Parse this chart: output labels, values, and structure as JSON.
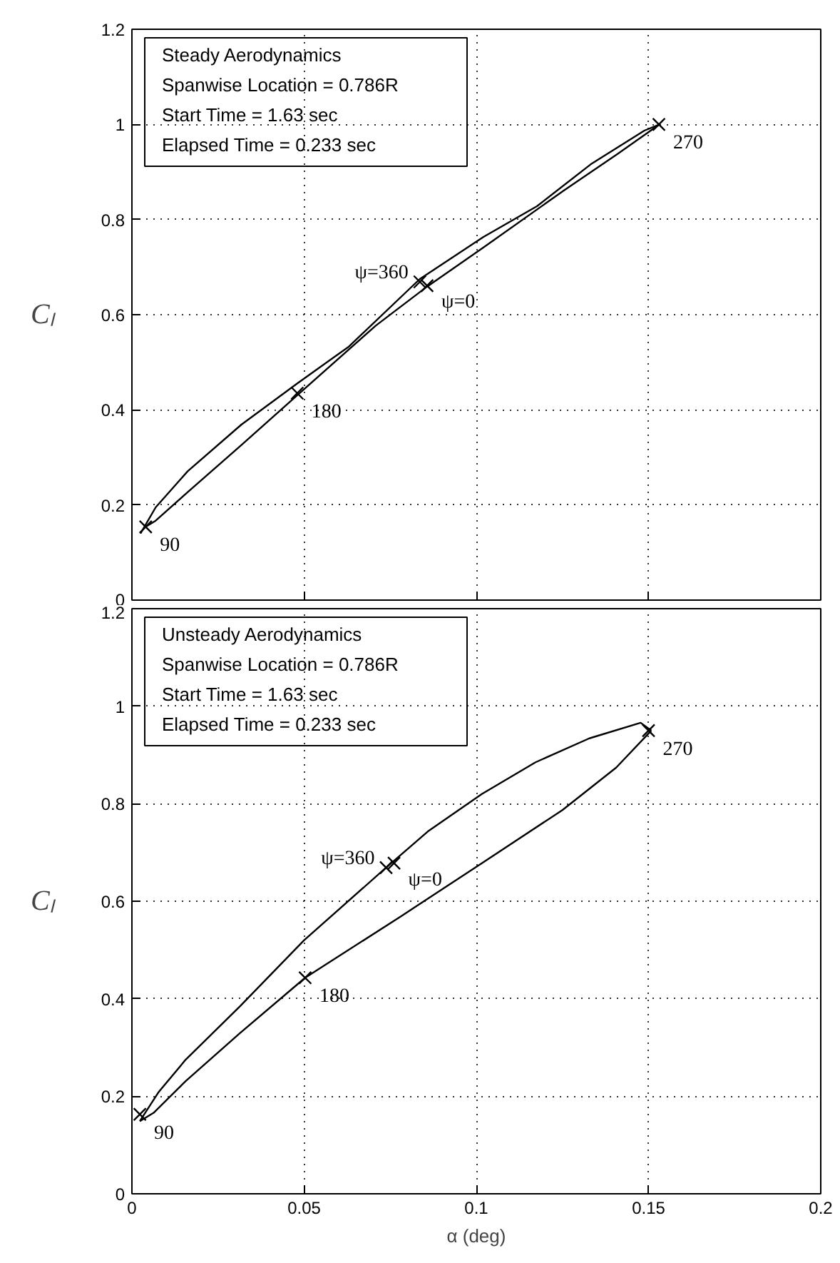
{
  "chart_data": [
    {
      "type": "line",
      "ylabel": "Cₗ",
      "xlim": [
        0,
        0.2
      ],
      "xticks": [
        0,
        0.05,
        0.1,
        0.15,
        0.2
      ],
      "ylim": [
        0,
        1.2
      ],
      "yticks": [
        0,
        0.2,
        0.4,
        0.6,
        0.8,
        1,
        1.2
      ],
      "tick_labels": "y",
      "grid": true,
      "series": [
        {
          "color": "#000000",
          "x": [
            0.0025,
            0.0069,
            0.0162,
            0.0318,
            0.0479,
            0.063,
            0.0836,
            0.102,
            0.1176,
            0.1332,
            0.1488,
            0.1532
          ],
          "values": [
            0.14,
            0.195,
            0.271,
            0.369,
            0.455,
            0.533,
            0.675,
            0.763,
            0.828,
            0.916,
            0.987,
            1.0
          ]
        },
        {
          "color": "#000000",
          "x": [
            0.004,
            0.0069,
            0.0162,
            0.0318,
            0.0479,
            0.0708,
            0.0857,
            0.102,
            0.1254,
            0.141,
            0.1532
          ],
          "values": [
            0.154,
            0.167,
            0.227,
            0.326,
            0.43,
            0.577,
            0.659,
            0.741,
            0.861,
            0.938,
            1.0
          ]
        },
        {
          "type": "scatter",
          "color": "#000000",
          "marker": "cross",
          "x": [
            0.0857,
            0.004,
            0.048,
            0.153,
            0.0836
          ],
          "values": [
            0.661,
            0.154,
            0.435,
            1.0,
            0.669
          ]
        }
      ],
      "annotations": [
        "Steady Aerodynamics",
        "Spanwise Location = 0.786R",
        "Start Time = 1.63 sec",
        "Elapsed Time = 0.233 sec",
        {
          "text": "270",
          "x": 0.153,
          "y": 1.0
        },
        {
          "text": "ψ=360",
          "x": 0.0836,
          "y": 0.669
        },
        {
          "text": "ψ=0",
          "x": 0.0857,
          "y": 0.661
        },
        {
          "text": "180",
          "x": 0.048,
          "y": 0.435
        },
        {
          "text": "90",
          "x": 0.004,
          "y": 0.154
        }
      ]
    },
    {
      "type": "line",
      "xlabel": "α (deg)",
      "ylabel": "Cₗ",
      "xlim": [
        0,
        0.2
      ],
      "xticks": [
        0,
        0.05,
        0.1,
        0.15,
        0.2
      ],
      "ylim": [
        0,
        1.2
      ],
      "yticks": [
        0,
        0.2,
        0.4,
        0.6,
        0.8,
        1,
        1.2
      ],
      "grid": true,
      "series": [
        {
          "color": "#000000",
          "x": [
            0.0023,
            0.0078,
            0.0156,
            0.0313,
            0.05,
            0.0738,
            0.0859,
            0.1016,
            0.1172,
            0.1328,
            0.1477,
            0.1508
          ],
          "values": [
            0.149,
            0.209,
            0.275,
            0.384,
            0.52,
            0.669,
            0.743,
            0.82,
            0.885,
            0.934,
            0.966,
            0.95
          ]
        },
        {
          "color": "#000000",
          "x": [
            0.0023,
            0.0063,
            0.0156,
            0.0313,
            0.0503,
            0.0781,
            0.1016,
            0.125,
            0.1406,
            0.1508
          ],
          "values": [
            0.149,
            0.166,
            0.231,
            0.329,
            0.443,
            0.569,
            0.678,
            0.787,
            0.874,
            0.95
          ]
        },
        {
          "type": "scatter",
          "color": "#000000",
          "marker": "cross",
          "x": [
            0.0761,
            0.0023,
            0.0503,
            0.15,
            0.0738
          ],
          "values": [
            0.678,
            0.163,
            0.443,
            0.95,
            0.669
          ]
        }
      ],
      "annotations": [
        "Unsteady Aerodynamics",
        "Spanwise Location = 0.786R",
        "Start Time = 1.63 sec",
        "Elapsed Time = 0.233 sec",
        {
          "text": "270",
          "x": 0.15,
          "y": 0.95
        },
        {
          "text": "ψ=360",
          "x": 0.0738,
          "y": 0.669
        },
        {
          "text": "ψ=0",
          "x": 0.0761,
          "y": 0.678
        },
        {
          "text": "180",
          "x": 0.0503,
          "y": 0.443
        },
        {
          "text": "90",
          "x": 0.0023,
          "y": 0.163
        }
      ]
    }
  ]
}
